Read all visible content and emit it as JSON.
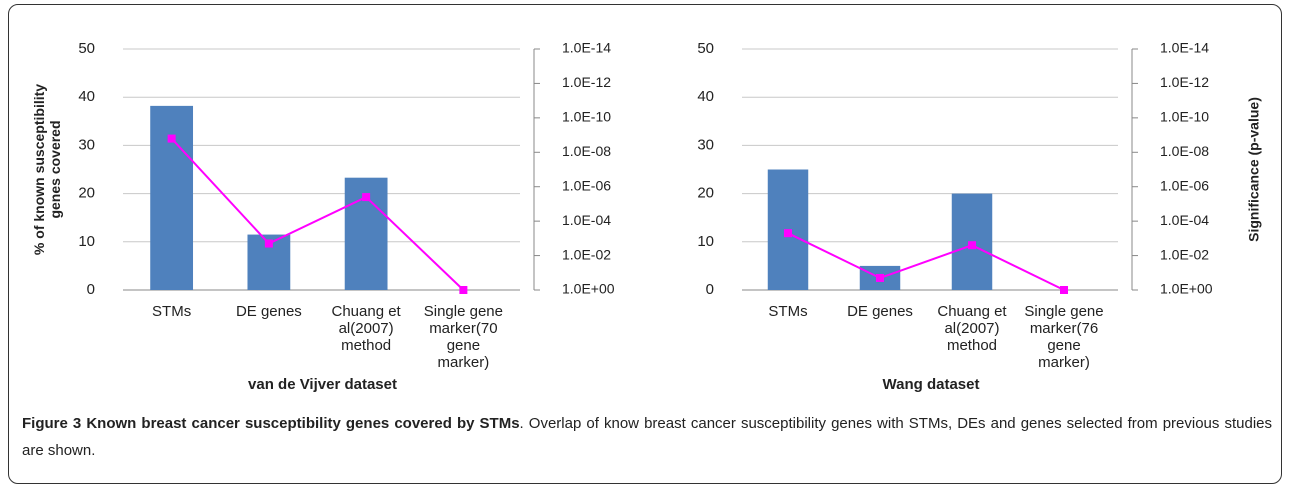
{
  "chart_data": [
    {
      "type": "bar",
      "xlabel": "van de Vijver dataset",
      "ylabel": "% of known susceptibility genes covered",
      "categories": [
        "STMs",
        "DE genes",
        "Chuang et al(2007) method",
        "Single gene marker(70 gene marker)"
      ],
      "series": [
        {
          "color": "#4f81bd",
          "values": [
            38.2,
            11.5,
            23.3,
            0
          ]
        },
        {
          "type": "line",
          "axis": "y2",
          "color": "#ff00ff",
          "values": [
            1.6e-09,
            0.002,
            4e-06,
            1
          ]
        }
      ],
      "ylim": [
        0,
        50
      ],
      "yticks": [
        0,
        10,
        20,
        30,
        40,
        50
      ],
      "y2scale": "log",
      "y2lim": [
        1,
        1e-14
      ],
      "y2ticks": [
        {
          "value": 1,
          "label": "1.0E+00"
        },
        {
          "value": 0.01,
          "label": "1.0E-02"
        },
        {
          "value": 0.0001,
          "label": "1.0E-04"
        },
        {
          "value": 1e-06,
          "label": "1.0E-06"
        },
        {
          "value": 1e-08,
          "label": "1.0E-08"
        },
        {
          "value": 1e-10,
          "label": "1.0E-10"
        },
        {
          "value": 1e-12,
          "label": "1.0E-12"
        },
        {
          "value": 1e-14,
          "label": "1.0E-14"
        }
      ],
      "grid": true
    },
    {
      "type": "bar",
      "xlabel": "Wang dataset",
      "y2label": "Significance (p-value)",
      "categories": [
        "STMs",
        "DE genes",
        "Chuang et al(2007) method",
        "Single gene marker(76 gene marker)"
      ],
      "series": [
        {
          "color": "#4f81bd",
          "values": [
            25,
            5,
            20,
            0
          ]
        },
        {
          "type": "line",
          "axis": "y2",
          "color": "#ff00ff",
          "values": [
            0.0005,
            0.2,
            0.0025,
            1
          ]
        }
      ],
      "ylim": [
        0,
        50
      ],
      "yticks": [
        0,
        10,
        20,
        30,
        40,
        50
      ],
      "y2scale": "log",
      "y2lim": [
        1,
        1e-14
      ],
      "y2ticks": [
        {
          "value": 1,
          "label": "1.0E+00"
        },
        {
          "value": 0.01,
          "label": "1.0E-02"
        },
        {
          "value": 0.0001,
          "label": "1.0E-04"
        },
        {
          "value": 1e-06,
          "label": "1.0E-06"
        },
        {
          "value": 1e-08,
          "label": "1.0E-08"
        },
        {
          "value": 1e-10,
          "label": "1.0E-10"
        },
        {
          "value": 1e-12,
          "label": "1.0E-12"
        },
        {
          "value": 1e-14,
          "label": "1.0E-14"
        }
      ],
      "grid": true
    }
  ],
  "caption": {
    "title": "Figure 3 Known breast cancer susceptibility genes covered by STMs",
    "text": ". Overlap of know breast cancer susceptibility genes with STMs, DEs and genes selected from previous studies are shown."
  }
}
